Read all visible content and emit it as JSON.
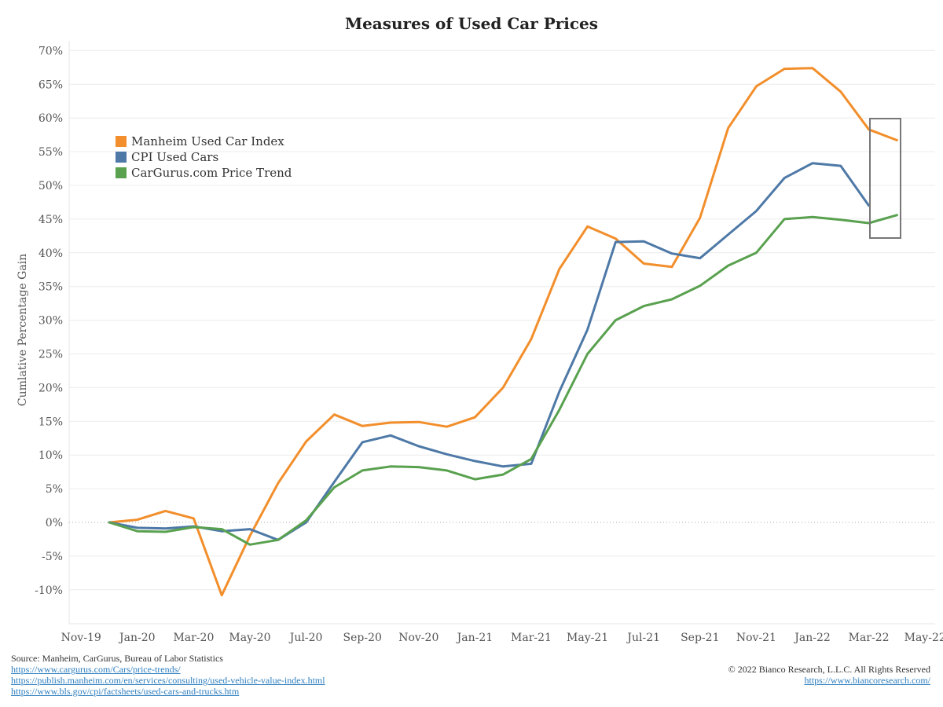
{
  "chart_data": {
    "type": "line",
    "title": "Measures of Used Car Prices",
    "xlabel": "",
    "ylabel": "Cumlative Percentage Gain",
    "x_ticks": [
      "Nov-19",
      "Jan-20",
      "Mar-20",
      "May-20",
      "Jul-20",
      "Sep-20",
      "Nov-20",
      "Jan-21",
      "Mar-21",
      "May-21",
      "Jul-21",
      "Sep-21",
      "Nov-21",
      "Jan-22",
      "Mar-22",
      "May-22"
    ],
    "y_ticks": [
      "70%",
      "65%",
      "60%",
      "55%",
      "50%",
      "45%",
      "40%",
      "35%",
      "30%",
      "25%",
      "20%",
      "15%",
      "10%",
      "5%",
      "0%",
      "-5%",
      "-10%"
    ],
    "ylim": [
      -15,
      70
    ],
    "grid": true,
    "zero_line": "dotted",
    "legend_position": "top-left",
    "months": [
      "Dec-19",
      "Jan-20",
      "Feb-20",
      "Mar-20",
      "Apr-20",
      "May-20",
      "Jun-20",
      "Jul-20",
      "Aug-20",
      "Sep-20",
      "Oct-20",
      "Nov-20",
      "Dec-20",
      "Jan-21",
      "Feb-21",
      "Mar-21",
      "Apr-21",
      "May-21",
      "Jun-21",
      "Jul-21",
      "Aug-21",
      "Sep-21",
      "Oct-21",
      "Nov-21",
      "Dec-21",
      "Jan-22",
      "Feb-22",
      "Mar-22",
      "Apr-22"
    ],
    "series": [
      {
        "name": "Manheim Used Car Index",
        "color": "#f28e2b",
        "values": [
          0,
          0.4,
          1.7,
          0.6,
          -10.8,
          -2.0,
          5.8,
          12.0,
          16.0,
          14.3,
          14.8,
          14.9,
          14.2,
          15.6,
          20.0,
          27.2,
          37.6,
          43.9,
          42.1,
          38.4,
          37.9,
          45.2,
          58.5,
          64.7,
          67.3,
          67.4,
          63.9,
          58.3,
          56.7
        ]
      },
      {
        "name": "CPI Used Cars",
        "color": "#4e79a7",
        "values": [
          0,
          -0.8,
          -0.9,
          -0.6,
          -1.3,
          -1.0,
          -2.6,
          0.0,
          6.0,
          11.9,
          12.9,
          11.3,
          10.1,
          9.1,
          8.3,
          8.7,
          19.4,
          28.6,
          41.6,
          41.7,
          39.9,
          39.2,
          42.7,
          46.2,
          51.1,
          53.3,
          52.9,
          47.0,
          null
        ]
      },
      {
        "name": "CarGurus.com Price Trend",
        "color": "#59a14f",
        "values": [
          0,
          -1.3,
          -1.4,
          -0.7,
          -1.0,
          -3.3,
          -2.6,
          0.3,
          5.2,
          7.7,
          8.3,
          8.2,
          7.7,
          6.4,
          7.1,
          9.4,
          16.7,
          25.0,
          30.0,
          32.1,
          33.1,
          35.1,
          38.1,
          40.0,
          45.0,
          45.3,
          44.9,
          44.4,
          45.6
        ]
      }
    ],
    "annotation": "rectangle highlighting latest data (Mar-22 to Apr-22)"
  },
  "footer": {
    "source": "Source: Manheim, CarGurus, Bureau of Labor Statistics",
    "links": [
      "https://www.cargurus.com/Cars/price-trends/",
      "https://publish.manheim.com/en/services/consulting/used-vehicle-value-index.html",
      "https://www.bls.gov/cpi/factsheets/used-cars-and-trucks.htm"
    ],
    "copyright": "© 2022 Bianco Research, L.L.C. All Rights Reserved",
    "website": "https://www.biancoresearch.com/"
  }
}
